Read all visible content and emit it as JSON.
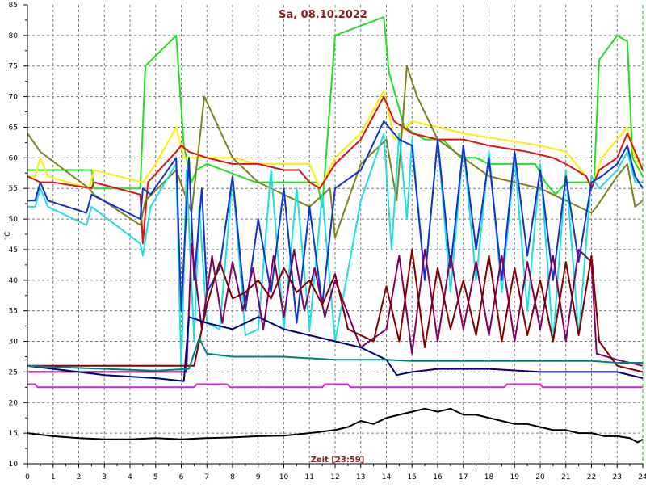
{
  "chart_data": {
    "type": "line",
    "title": "Sa, 08.10.2022",
    "xlabel": "Zeit [23:59]",
    "ylabel": "°C",
    "xlim": [
      0,
      24
    ],
    "ylim": [
      10,
      85
    ],
    "x_ticks": [
      "0",
      "1",
      "2",
      "3",
      "4",
      "5",
      "6",
      "7",
      "8",
      "9",
      "10",
      "11",
      "12",
      "13",
      "14",
      "15",
      "16",
      "17",
      "18",
      "19",
      "20",
      "21",
      "22",
      "23",
      "24"
    ],
    "y_ticks": [
      "10",
      "15",
      "20",
      "25",
      "30",
      "35",
      "40",
      "45",
      "50",
      "55",
      "60",
      "65",
      "70",
      "75",
      "80",
      "85"
    ],
    "grid": true,
    "series": [
      {
        "color": "#22dd22",
        "x": [
          0,
          2.5,
          2.6,
          4.4,
          4.6,
          5.8,
          6.1,
          6.4,
          6.6,
          7.0,
          8.9,
          9.1,
          11.3,
          11.5,
          12.0,
          13.9,
          14.1,
          14.7,
          15.5,
          16.2,
          16.9,
          17.5,
          18.0,
          19.8,
          20.2,
          20.6,
          21.0,
          22.1,
          22.3,
          23.0,
          23.4,
          23.6,
          24.0
        ],
        "values": [
          58,
          58,
          55,
          55,
          75,
          80,
          62,
          56,
          58,
          59,
          56,
          56,
          56,
          52,
          80,
          83,
          74,
          65,
          63,
          63,
          60,
          60,
          59,
          59,
          56,
          54,
          56,
          56,
          76,
          80,
          79,
          60,
          57
        ]
      },
      {
        "color": "#ffee00",
        "x": [
          0,
          0.3,
          0.5,
          0.8,
          2.4,
          2.6,
          4.5,
          5.0,
          5.8,
          6.1,
          7.0,
          8.0,
          9.0,
          10.0,
          11.0,
          11.4,
          12.0,
          13.0,
          13.9,
          14.3,
          15.0,
          16.0,
          17.0,
          18.5,
          20.0,
          21.0,
          21.8,
          22.0,
          22.4,
          23.0,
          23.4,
          23.7,
          24.0
        ],
        "values": [
          57,
          57,
          60,
          57,
          55,
          58,
          56,
          59,
          65,
          60,
          60,
          60,
          59,
          59,
          59,
          55,
          60,
          64,
          71,
          63,
          66,
          65,
          64,
          63,
          62,
          61,
          57,
          55,
          60,
          63,
          65,
          60,
          58
        ]
      },
      {
        "color": "#dd1111",
        "x": [
          0,
          0.5,
          1.0,
          2.5,
          2.6,
          4.4,
          4.5,
          4.7,
          5.8,
          6.0,
          6.3,
          7.0,
          8.0,
          9.0,
          10.0,
          10.6,
          11.0,
          11.4,
          12.0,
          13.0,
          13.9,
          14.3,
          15.0,
          16.0,
          17.0,
          18.0,
          19.5,
          20.5,
          21.0,
          21.8,
          22.0,
          22.3,
          23.0,
          23.4,
          24.0
        ],
        "values": [
          57,
          56,
          56,
          55,
          56,
          54,
          46,
          56,
          61,
          62,
          61,
          60,
          59,
          59,
          58,
          58,
          56,
          55,
          59,
          63,
          70,
          66,
          64,
          63,
          63,
          62,
          61,
          60,
          59,
          57,
          55,
          58,
          60,
          64,
          58
        ]
      },
      {
        "color": "#808020",
        "x": [
          0,
          0.5,
          2.4,
          2.6,
          4.4,
          4.6,
          5.8,
          6.4,
          6.9,
          8.0,
          9.0,
          10.0,
          11.0,
          11.8,
          12.0,
          13.0,
          14.0,
          14.4,
          14.8,
          15.2,
          16.0,
          17.0,
          18.0,
          19.0,
          20.0,
          21.0,
          22.0,
          22.2,
          23.0,
          23.4,
          23.7,
          24.0
        ],
        "values": [
          64,
          61,
          55,
          54,
          49,
          53,
          58,
          51,
          70,
          60,
          56,
          54,
          52,
          55,
          47,
          59,
          63,
          53,
          75,
          70,
          63,
          60,
          57,
          56,
          55,
          53,
          51,
          52,
          57,
          59,
          52,
          53
        ]
      },
      {
        "color": "#22dddd",
        "x": [
          0,
          0.3,
          0.5,
          0.8,
          2.3,
          2.5,
          4.4,
          4.5,
          4.8,
          5.8,
          6.0,
          6.2,
          6.5,
          6.7,
          7.0,
          7.5,
          8.0,
          8.5,
          9.0,
          9.5,
          10.0,
          10.5,
          11.0,
          11.5,
          12.0,
          13.0,
          13.9,
          14.2,
          14.5,
          14.8,
          15.0,
          15.5,
          16.0,
          16.5,
          17.0,
          17.5,
          18.0,
          18.5,
          19.0,
          19.5,
          20.0,
          20.5,
          21.0,
          21.5,
          22.0,
          22.3,
          23.0,
          23.4,
          23.7,
          24.0
        ],
        "values": [
          52,
          52,
          55,
          52,
          49,
          52,
          46,
          44,
          52,
          59,
          25,
          58,
          30,
          52,
          33,
          32,
          57,
          31,
          32,
          58,
          32,
          55,
          32,
          54,
          30,
          53,
          64,
          45,
          64,
          50,
          63,
          40,
          63,
          38,
          62,
          40,
          61,
          38,
          60,
          35,
          59,
          30,
          58,
          31,
          57,
          55,
          58,
          61,
          56,
          56
        ]
      },
      {
        "color": "#1133cc",
        "x": [
          0,
          0.3,
          0.5,
          0.8,
          2.3,
          2.5,
          4.4,
          4.5,
          4.8,
          5.8,
          6.0,
          6.3,
          6.5,
          6.8,
          7.0,
          7.5,
          8.0,
          8.5,
          9.0,
          9.5,
          10.0,
          10.5,
          11.0,
          11.5,
          12.0,
          13.0,
          13.9,
          14.5,
          15.0,
          15.5,
          16.0,
          16.5,
          17.0,
          17.5,
          18.0,
          18.5,
          19.0,
          19.5,
          20.0,
          20.5,
          21.0,
          21.5,
          22.0,
          22.4,
          23.0,
          23.4,
          23.7,
          24.0
        ],
        "values": [
          53,
          53,
          56,
          53,
          51,
          54,
          50,
          55,
          54,
          60,
          35,
          60,
          40,
          55,
          38,
          42,
          57,
          35,
          50,
          38,
          55,
          33,
          52,
          36,
          55,
          58,
          66,
          63,
          62,
          40,
          63,
          42,
          62,
          45,
          60,
          40,
          61,
          44,
          58,
          40,
          57,
          43,
          56,
          57,
          59,
          62,
          57,
          55
        ]
      },
      {
        "color": "#800060",
        "x": [
          0,
          6.2,
          6.4,
          6.8,
          7.2,
          7.6,
          8.0,
          8.4,
          8.8,
          9.2,
          9.6,
          10.0,
          10.4,
          10.8,
          11.2,
          11.6,
          12.0,
          13.0,
          14.0,
          14.5,
          15.0,
          15.5,
          16.0,
          16.5,
          17.0,
          17.5,
          18.0,
          18.5,
          19.0,
          19.5,
          20.0,
          20.5,
          21.0,
          21.5,
          22.0,
          22.2,
          23.0,
          24.0
        ],
        "values": [
          25,
          25,
          46,
          32,
          44,
          33,
          43,
          35,
          42,
          32,
          44,
          34,
          45,
          35,
          42,
          34,
          40,
          29,
          32,
          44,
          28,
          45,
          30,
          44,
          32,
          43,
          31,
          44,
          30,
          43,
          32,
          44,
          30,
          45,
          43,
          28,
          27,
          26
        ]
      },
      {
        "color": "#800000",
        "x": [
          0,
          6.5,
          7.0,
          7.5,
          8.0,
          8.5,
          9.0,
          9.5,
          10.0,
          10.5,
          11.0,
          11.5,
          12.0,
          12.5,
          13.0,
          13.5,
          14.0,
          14.5,
          15.0,
          15.5,
          16.0,
          16.5,
          17.0,
          17.5,
          18.0,
          18.5,
          19.0,
          19.5,
          20.0,
          20.5,
          21.0,
          21.5,
          22.0,
          22.3,
          23.0,
          24.0
        ],
        "values": [
          26,
          26,
          36,
          43,
          37,
          38,
          40,
          37,
          42,
          38,
          40,
          36,
          41,
          32,
          31,
          30,
          39,
          30,
          45,
          29,
          42,
          32,
          40,
          31,
          44,
          30,
          42,
          31,
          40,
          30,
          43,
          31,
          44,
          30,
          26,
          25
        ]
      },
      {
        "color": "#000080",
        "x": [
          0,
          1.0,
          3.0,
          5.0,
          6.1,
          6.3,
          7.0,
          8.0,
          9.0,
          9.5,
          10.0,
          11.0,
          12.0,
          13.0,
          14.0,
          14.4,
          15.0,
          16.0,
          18.0,
          20.0,
          22.0,
          23.0,
          24.0
        ],
        "values": [
          26,
          25.5,
          24.5,
          24,
          23.5,
          34,
          33,
          32,
          34,
          33,
          32,
          31,
          30,
          29,
          27,
          24.5,
          25,
          25.5,
          25.5,
          25,
          25,
          25,
          24
        ]
      },
      {
        "color": "#008080",
        "x": [
          0,
          1.0,
          3.0,
          5.0,
          6.3,
          6.7,
          7.0,
          8.0,
          10.0,
          12.0,
          14.0,
          15.0,
          17.0,
          19.0,
          21.0,
          22.0,
          23.0,
          24.0
        ],
        "values": [
          26,
          25.8,
          25.5,
          25.2,
          25.5,
          30.5,
          28,
          27.5,
          27.5,
          27,
          27,
          26.8,
          26.8,
          26.8,
          26.8,
          26.8,
          26.5,
          26.5
        ]
      },
      {
        "color": "#dd22dd",
        "x": [
          0,
          0.3,
          0.4,
          6.5,
          6.6,
          7.8,
          7.9,
          11.5,
          11.6,
          12.5,
          12.6,
          18.6,
          18.7,
          20.0,
          20.1,
          24.0
        ],
        "values": [
          23,
          23,
          22.5,
          22.5,
          23,
          23,
          22.5,
          22.5,
          23,
          23,
          22.5,
          22.5,
          23,
          23,
          22.5,
          22.5
        ]
      },
      {
        "color": "#000000",
        "x": [
          0,
          1.0,
          2.0,
          3.0,
          4.0,
          5.0,
          6.0,
          7.0,
          8.0,
          9.0,
          10.0,
          11.0,
          12.0,
          12.5,
          13.0,
          13.5,
          14.0,
          14.5,
          15.0,
          15.5,
          16.0,
          16.5,
          17.0,
          17.5,
          18.0,
          18.5,
          19.0,
          19.5,
          20.0,
          20.5,
          21.0,
          21.5,
          22.0,
          22.5,
          23.0,
          23.5,
          23.8,
          24.0
        ],
        "values": [
          15,
          14.5,
          14.2,
          14.0,
          14.0,
          14.2,
          14.0,
          14.2,
          14.3,
          14.5,
          14.6,
          15.0,
          15.5,
          16.0,
          17.0,
          16.5,
          17.5,
          18.0,
          18.5,
          19.0,
          18.5,
          19.0,
          18.0,
          18.0,
          17.5,
          17.0,
          16.5,
          16.5,
          16.0,
          15.5,
          15.5,
          15.0,
          15.0,
          14.5,
          14.5,
          14.2,
          13.5,
          14.0
        ]
      }
    ]
  }
}
